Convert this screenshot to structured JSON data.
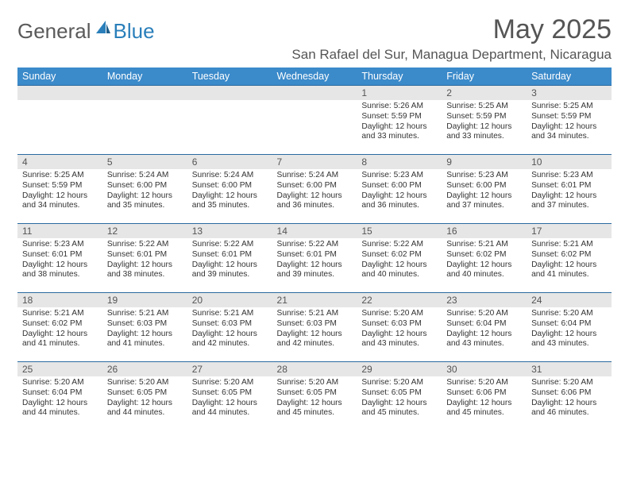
{
  "logo": {
    "general": "General",
    "blue": "Blue"
  },
  "title": "May 2025",
  "location": "San Rafael del Sur, Managua Department, Nicaragua",
  "colors": {
    "header_bg": "#3b8aca",
    "header_text": "#ffffff",
    "border": "#2a6aa0",
    "daynum_bg": "#e6e6e6",
    "text": "#333333",
    "title_text": "#555555"
  },
  "daysOfWeek": [
    "Sunday",
    "Monday",
    "Tuesday",
    "Wednesday",
    "Thursday",
    "Friday",
    "Saturday"
  ],
  "weeks": [
    [
      {
        "n": "",
        "sr": "",
        "ss": "",
        "dl": ""
      },
      {
        "n": "",
        "sr": "",
        "ss": "",
        "dl": ""
      },
      {
        "n": "",
        "sr": "",
        "ss": "",
        "dl": ""
      },
      {
        "n": "",
        "sr": "",
        "ss": "",
        "dl": ""
      },
      {
        "n": "1",
        "sr": "Sunrise: 5:26 AM",
        "ss": "Sunset: 5:59 PM",
        "dl": "Daylight: 12 hours and 33 minutes."
      },
      {
        "n": "2",
        "sr": "Sunrise: 5:25 AM",
        "ss": "Sunset: 5:59 PM",
        "dl": "Daylight: 12 hours and 33 minutes."
      },
      {
        "n": "3",
        "sr": "Sunrise: 5:25 AM",
        "ss": "Sunset: 5:59 PM",
        "dl": "Daylight: 12 hours and 34 minutes."
      }
    ],
    [
      {
        "n": "4",
        "sr": "Sunrise: 5:25 AM",
        "ss": "Sunset: 5:59 PM",
        "dl": "Daylight: 12 hours and 34 minutes."
      },
      {
        "n": "5",
        "sr": "Sunrise: 5:24 AM",
        "ss": "Sunset: 6:00 PM",
        "dl": "Daylight: 12 hours and 35 minutes."
      },
      {
        "n": "6",
        "sr": "Sunrise: 5:24 AM",
        "ss": "Sunset: 6:00 PM",
        "dl": "Daylight: 12 hours and 35 minutes."
      },
      {
        "n": "7",
        "sr": "Sunrise: 5:24 AM",
        "ss": "Sunset: 6:00 PM",
        "dl": "Daylight: 12 hours and 36 minutes."
      },
      {
        "n": "8",
        "sr": "Sunrise: 5:23 AM",
        "ss": "Sunset: 6:00 PM",
        "dl": "Daylight: 12 hours and 36 minutes."
      },
      {
        "n": "9",
        "sr": "Sunrise: 5:23 AM",
        "ss": "Sunset: 6:00 PM",
        "dl": "Daylight: 12 hours and 37 minutes."
      },
      {
        "n": "10",
        "sr": "Sunrise: 5:23 AM",
        "ss": "Sunset: 6:01 PM",
        "dl": "Daylight: 12 hours and 37 minutes."
      }
    ],
    [
      {
        "n": "11",
        "sr": "Sunrise: 5:23 AM",
        "ss": "Sunset: 6:01 PM",
        "dl": "Daylight: 12 hours and 38 minutes."
      },
      {
        "n": "12",
        "sr": "Sunrise: 5:22 AM",
        "ss": "Sunset: 6:01 PM",
        "dl": "Daylight: 12 hours and 38 minutes."
      },
      {
        "n": "13",
        "sr": "Sunrise: 5:22 AM",
        "ss": "Sunset: 6:01 PM",
        "dl": "Daylight: 12 hours and 39 minutes."
      },
      {
        "n": "14",
        "sr": "Sunrise: 5:22 AM",
        "ss": "Sunset: 6:01 PM",
        "dl": "Daylight: 12 hours and 39 minutes."
      },
      {
        "n": "15",
        "sr": "Sunrise: 5:22 AM",
        "ss": "Sunset: 6:02 PM",
        "dl": "Daylight: 12 hours and 40 minutes."
      },
      {
        "n": "16",
        "sr": "Sunrise: 5:21 AM",
        "ss": "Sunset: 6:02 PM",
        "dl": "Daylight: 12 hours and 40 minutes."
      },
      {
        "n": "17",
        "sr": "Sunrise: 5:21 AM",
        "ss": "Sunset: 6:02 PM",
        "dl": "Daylight: 12 hours and 41 minutes."
      }
    ],
    [
      {
        "n": "18",
        "sr": "Sunrise: 5:21 AM",
        "ss": "Sunset: 6:02 PM",
        "dl": "Daylight: 12 hours and 41 minutes."
      },
      {
        "n": "19",
        "sr": "Sunrise: 5:21 AM",
        "ss": "Sunset: 6:03 PM",
        "dl": "Daylight: 12 hours and 41 minutes."
      },
      {
        "n": "20",
        "sr": "Sunrise: 5:21 AM",
        "ss": "Sunset: 6:03 PM",
        "dl": "Daylight: 12 hours and 42 minutes."
      },
      {
        "n": "21",
        "sr": "Sunrise: 5:21 AM",
        "ss": "Sunset: 6:03 PM",
        "dl": "Daylight: 12 hours and 42 minutes."
      },
      {
        "n": "22",
        "sr": "Sunrise: 5:20 AM",
        "ss": "Sunset: 6:03 PM",
        "dl": "Daylight: 12 hours and 43 minutes."
      },
      {
        "n": "23",
        "sr": "Sunrise: 5:20 AM",
        "ss": "Sunset: 6:04 PM",
        "dl": "Daylight: 12 hours and 43 minutes."
      },
      {
        "n": "24",
        "sr": "Sunrise: 5:20 AM",
        "ss": "Sunset: 6:04 PM",
        "dl": "Daylight: 12 hours and 43 minutes."
      }
    ],
    [
      {
        "n": "25",
        "sr": "Sunrise: 5:20 AM",
        "ss": "Sunset: 6:04 PM",
        "dl": "Daylight: 12 hours and 44 minutes."
      },
      {
        "n": "26",
        "sr": "Sunrise: 5:20 AM",
        "ss": "Sunset: 6:05 PM",
        "dl": "Daylight: 12 hours and 44 minutes."
      },
      {
        "n": "27",
        "sr": "Sunrise: 5:20 AM",
        "ss": "Sunset: 6:05 PM",
        "dl": "Daylight: 12 hours and 44 minutes."
      },
      {
        "n": "28",
        "sr": "Sunrise: 5:20 AM",
        "ss": "Sunset: 6:05 PM",
        "dl": "Daylight: 12 hours and 45 minutes."
      },
      {
        "n": "29",
        "sr": "Sunrise: 5:20 AM",
        "ss": "Sunset: 6:05 PM",
        "dl": "Daylight: 12 hours and 45 minutes."
      },
      {
        "n": "30",
        "sr": "Sunrise: 5:20 AM",
        "ss": "Sunset: 6:06 PM",
        "dl": "Daylight: 12 hours and 45 minutes."
      },
      {
        "n": "31",
        "sr": "Sunrise: 5:20 AM",
        "ss": "Sunset: 6:06 PM",
        "dl": "Daylight: 12 hours and 46 minutes."
      }
    ]
  ]
}
